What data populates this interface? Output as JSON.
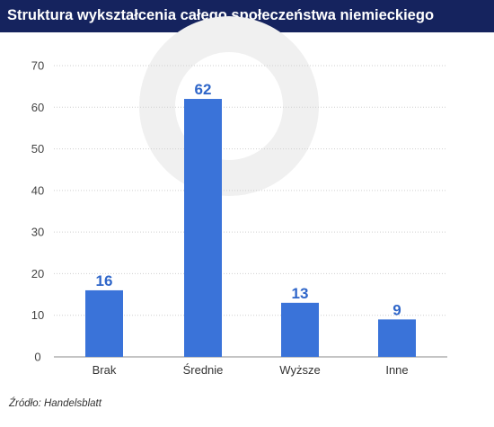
{
  "header": {
    "title": "Struktura wykształcenia całego społeczeństwa niemieckiego"
  },
  "footer": {
    "source": "Źródło: Handelsblatt"
  },
  "colors": {
    "title_bar": "#15235e",
    "bar": "#3a73d9",
    "data_label": "#2f66c9",
    "gridline": "#cfcfcf",
    "watermark": "#f0f0f0"
  },
  "chart_data": {
    "type": "bar",
    "title": "Struktura wykształcenia całego społeczeństwa niemieckiego",
    "categories": [
      "Brak",
      "Średnie",
      "Wyższe",
      "Inne"
    ],
    "values": [
      16,
      62,
      13,
      9
    ],
    "data_labels": [
      "16",
      "62",
      "13",
      "9"
    ],
    "ylim": [
      0,
      70
    ],
    "yticks": [
      0,
      10,
      20,
      30,
      40,
      50,
      60,
      70
    ],
    "xlabel": "",
    "ylabel": "",
    "grid": "horizontal",
    "legend": "none"
  }
}
